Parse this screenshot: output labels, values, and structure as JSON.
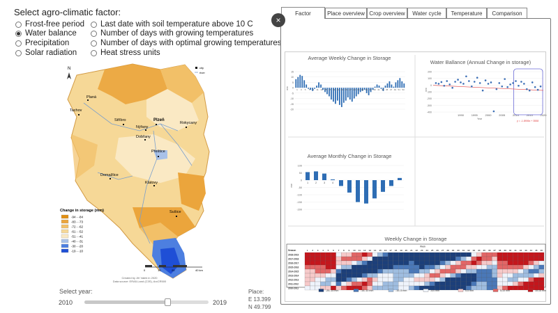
{
  "factor_title": "Select agro-climatic factor:",
  "options": [
    {
      "label": "Frost-free period",
      "selected": false
    },
    {
      "label": "Water balance",
      "selected": true
    },
    {
      "label": "Precipitation",
      "selected": false
    },
    {
      "label": "Solar radiation",
      "selected": false
    },
    {
      "label": "Last date with soil temperature above 10 C",
      "selected": false
    },
    {
      "label": "Number of days with growing temperatures",
      "selected": false
    },
    {
      "label": "Number of days with optimal growing temperatures",
      "selected": false
    },
    {
      "label": "Heat stress units",
      "selected": false
    }
  ],
  "map": {
    "north": "N",
    "legend_city": "city",
    "legend_river": "river",
    "legend_title": "Change in storage (mm)",
    "legend_items": [
      {
        "label": "-94 - -84",
        "color": "#e08e12"
      },
      {
        "label": "-83 - -73",
        "color": "#eba53c"
      },
      {
        "label": "-72 - -62",
        "color": "#f2c068"
      },
      {
        "label": "-61 - -52",
        "color": "#f6d897"
      },
      {
        "label": "-51 - -41",
        "color": "#fae9c4"
      },
      {
        "label": "-40 - -31",
        "color": "#a9c1e8"
      },
      {
        "label": "-30 - -20",
        "color": "#4d7fe0"
      },
      {
        "label": "-19 - -10",
        "color": "#1f4fd6"
      }
    ],
    "cities": [
      "Planá",
      "Tachov",
      "Stříbro",
      "Plzeň",
      "Nýřany",
      "Rokycany",
      "Dobřany",
      "Přeštice",
      "Domažlice",
      "Klatovy",
      "Sušice"
    ],
    "scale": [
      "0",
      "10",
      "20",
      "40 km"
    ],
    "credit_1": "Created by Jiří Valeš in 2020",
    "credit_2": "Data source: ERA5-Land (C3S), ArcCR500"
  },
  "slider": {
    "label": "Select year:",
    "min": "2010",
    "max": "2019",
    "value_fraction": 0.67
  },
  "place": {
    "label": "Place:",
    "lon": "E 13.399",
    "lat": "N 49.799"
  },
  "tabs": [
    "Factor",
    "Place overview",
    "Crop overview",
    "Water cycle",
    "Temperature",
    "Comparison"
  ],
  "active_tab": "Factor",
  "close_icon": "×",
  "charts": {
    "weekly": {
      "title": "Average Weekly Change in Storage",
      "ylabel": "mm",
      "yticks": [
        "15",
        "10",
        "5",
        "0",
        "-5",
        "-10",
        "-15",
        "-20"
      ],
      "xticks": [
        "1",
        "3",
        "5",
        "7",
        "9",
        "11",
        "13",
        "15",
        "17",
        "19",
        "21",
        "23",
        "25",
        "27",
        "29",
        "31",
        "33",
        "35",
        "37",
        "39",
        "41",
        "43",
        "45",
        "47",
        "49",
        "51",
        "53"
      ],
      "type": "bar",
      "values": [
        8,
        10,
        12,
        11,
        7,
        3,
        -1,
        -2,
        -3,
        -1,
        2,
        5,
        3,
        -2,
        -4,
        -6,
        -8,
        -11,
        -13,
        -15,
        -12,
        -16,
        -18,
        -14,
        -12,
        -9,
        -11,
        -13,
        -10,
        -8,
        -6,
        -4,
        -3,
        -2,
        -5,
        -7,
        -4,
        -2,
        1,
        3,
        2,
        -1,
        -3,
        2,
        4,
        6,
        3,
        1,
        5,
        7,
        9,
        6,
        4
      ],
      "ylim": [
        -20,
        15
      ],
      "color": "#2e6db4"
    },
    "annual": {
      "title": "Water Ballance (Annual Change in storage)",
      "ylabel": "mm",
      "xlabel": "Year",
      "yticks": [
        "200",
        "100",
        "0",
        "-100",
        "-200",
        "-300",
        "-400"
      ],
      "xticks": [
        "1990",
        "1995",
        "2000",
        "2005",
        "2010",
        "2015",
        "2020"
      ],
      "trend_label": "y = -1.8906x + 3558",
      "type": "scatter",
      "years": [
        1981,
        1982,
        1983,
        1984,
        1985,
        1986,
        1987,
        1988,
        1989,
        1990,
        1991,
        1992,
        1993,
        1994,
        1995,
        1996,
        1997,
        1998,
        1999,
        2000,
        2001,
        2002,
        2003,
        2004,
        2005,
        2006,
        2007,
        2008,
        2009,
        2010,
        2011,
        2012,
        2013,
        2014,
        2015,
        2016,
        2017,
        2018,
        2019
      ],
      "values": [
        30,
        20,
        45,
        -10,
        60,
        10,
        -40,
        50,
        80,
        40,
        20,
        130,
        60,
        -20,
        50,
        110,
        30,
        -80,
        70,
        20,
        40,
        -390,
        -60,
        30,
        -20,
        90,
        -30,
        10,
        30,
        60,
        -10,
        50,
        20,
        -60,
        -80,
        40,
        -30,
        -70,
        -20
      ],
      "ylim": [
        -400,
        200
      ],
      "xlim": [
        1980,
        2020
      ],
      "trend": [
        [
          1980,
          -3.3
        ],
        [
          2020,
          -78.9
        ]
      ],
      "highlight": [
        2010,
        2019
      ]
    },
    "monthly": {
      "title": "Average Monthly Change in Storage",
      "ylabel": "mm",
      "yticks": [
        "100",
        "50",
        "0",
        "-50",
        "-100",
        "-150",
        "-200"
      ],
      "xticks": [
        "1",
        "2",
        "3",
        "4",
        "5",
        "6",
        "7",
        "8",
        "9",
        "10",
        "11",
        "12"
      ],
      "type": "bar",
      "categories": [
        "1",
        "2",
        "3",
        "4",
        "5",
        "6",
        "7",
        "8",
        "9",
        "10",
        "11",
        "12"
      ],
      "values": [
        55,
        60,
        45,
        5,
        -40,
        -85,
        -150,
        -160,
        -125,
        -80,
        -40,
        15
      ],
      "ylim": [
        -200,
        100
      ],
      "color": "#2e6db4"
    },
    "heatmap": {
      "title": "Weekly Change in Storage",
      "week_label": "Week",
      "season_label": "Season",
      "seasons": [
        "2018-2019",
        "2017-2018",
        "2016-2017",
        "2015-2016",
        "2014-2015",
        "2013-2014",
        "2012-2013",
        "2011-2012",
        "2010-2011"
      ],
      "weeks": [
        "1",
        "2",
        "3",
        "4",
        "5",
        "6",
        "7",
        "8",
        "9",
        "10",
        "11",
        "12",
        "13",
        "14",
        "15",
        "16",
        "17",
        "18",
        "19",
        "20",
        "21",
        "22",
        "23",
        "24",
        "25",
        "26",
        "27",
        "28",
        "29",
        "30",
        "31",
        "32",
        "33",
        "34",
        "35",
        "36",
        "37",
        "38",
        "39",
        "40",
        "41",
        "42",
        "43",
        "44",
        "45",
        "46"
      ],
      "type": "heatmap",
      "legend": [
        {
          "label": "-20;-15 mm",
          "color": "#1c3f7a"
        },
        {
          "label": "-15;-10 mm",
          "color": "#4a78b8"
        },
        {
          "label": "-10;-5 mm",
          "color": "#9fbde0"
        },
        {
          "label": "-5;0 mm",
          "color": "#eef3fb"
        },
        {
          "label": "0;5 mm",
          "color": "#f6c9c9"
        },
        {
          "label": "5;10 mm",
          "color": "#e26666"
        },
        {
          "label": "10;15 mm",
          "color": "#c4161c"
        }
      ]
    }
  }
}
